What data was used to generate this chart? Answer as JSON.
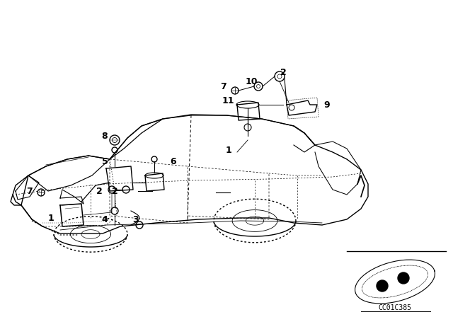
{
  "bg_color": "#ffffff",
  "line_color": "#000000",
  "fig_width": 6.4,
  "fig_height": 4.48,
  "dpi": 100,
  "code_text": "CC01C385"
}
